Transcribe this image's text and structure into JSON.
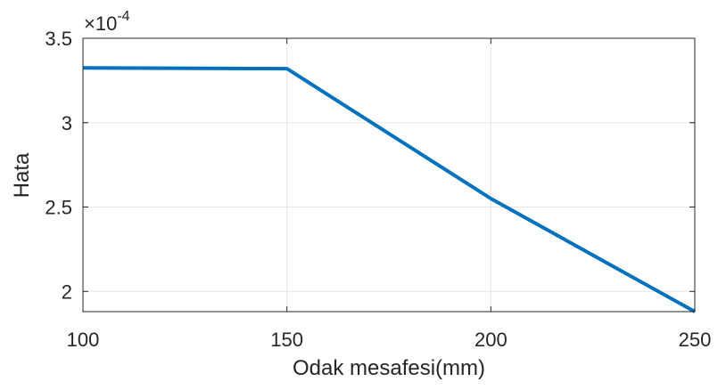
{
  "chart_data": {
    "type": "line",
    "title": "",
    "xlabel": "Odak mesafesi(mm)",
    "ylabel": "Hata",
    "exponent_label": "×10",
    "exponent_power": "-4",
    "x": [
      100,
      150,
      200,
      250
    ],
    "series": [
      {
        "values": [
          3.325,
          3.32,
          2.55,
          1.88
        ],
        "color": "#0072BD"
      }
    ],
    "xlim": [
      100,
      250
    ],
    "ylim": [
      1.88,
      3.5
    ],
    "xticks": [
      100,
      150,
      200,
      250
    ],
    "xtick_labels": [
      "100",
      "150",
      "200",
      "250"
    ],
    "yticks": [
      2,
      2.5,
      3,
      3.5
    ],
    "ytick_labels": [
      "2",
      "2.5",
      "3",
      "3.5"
    ],
    "grid": true,
    "legend": "none"
  }
}
